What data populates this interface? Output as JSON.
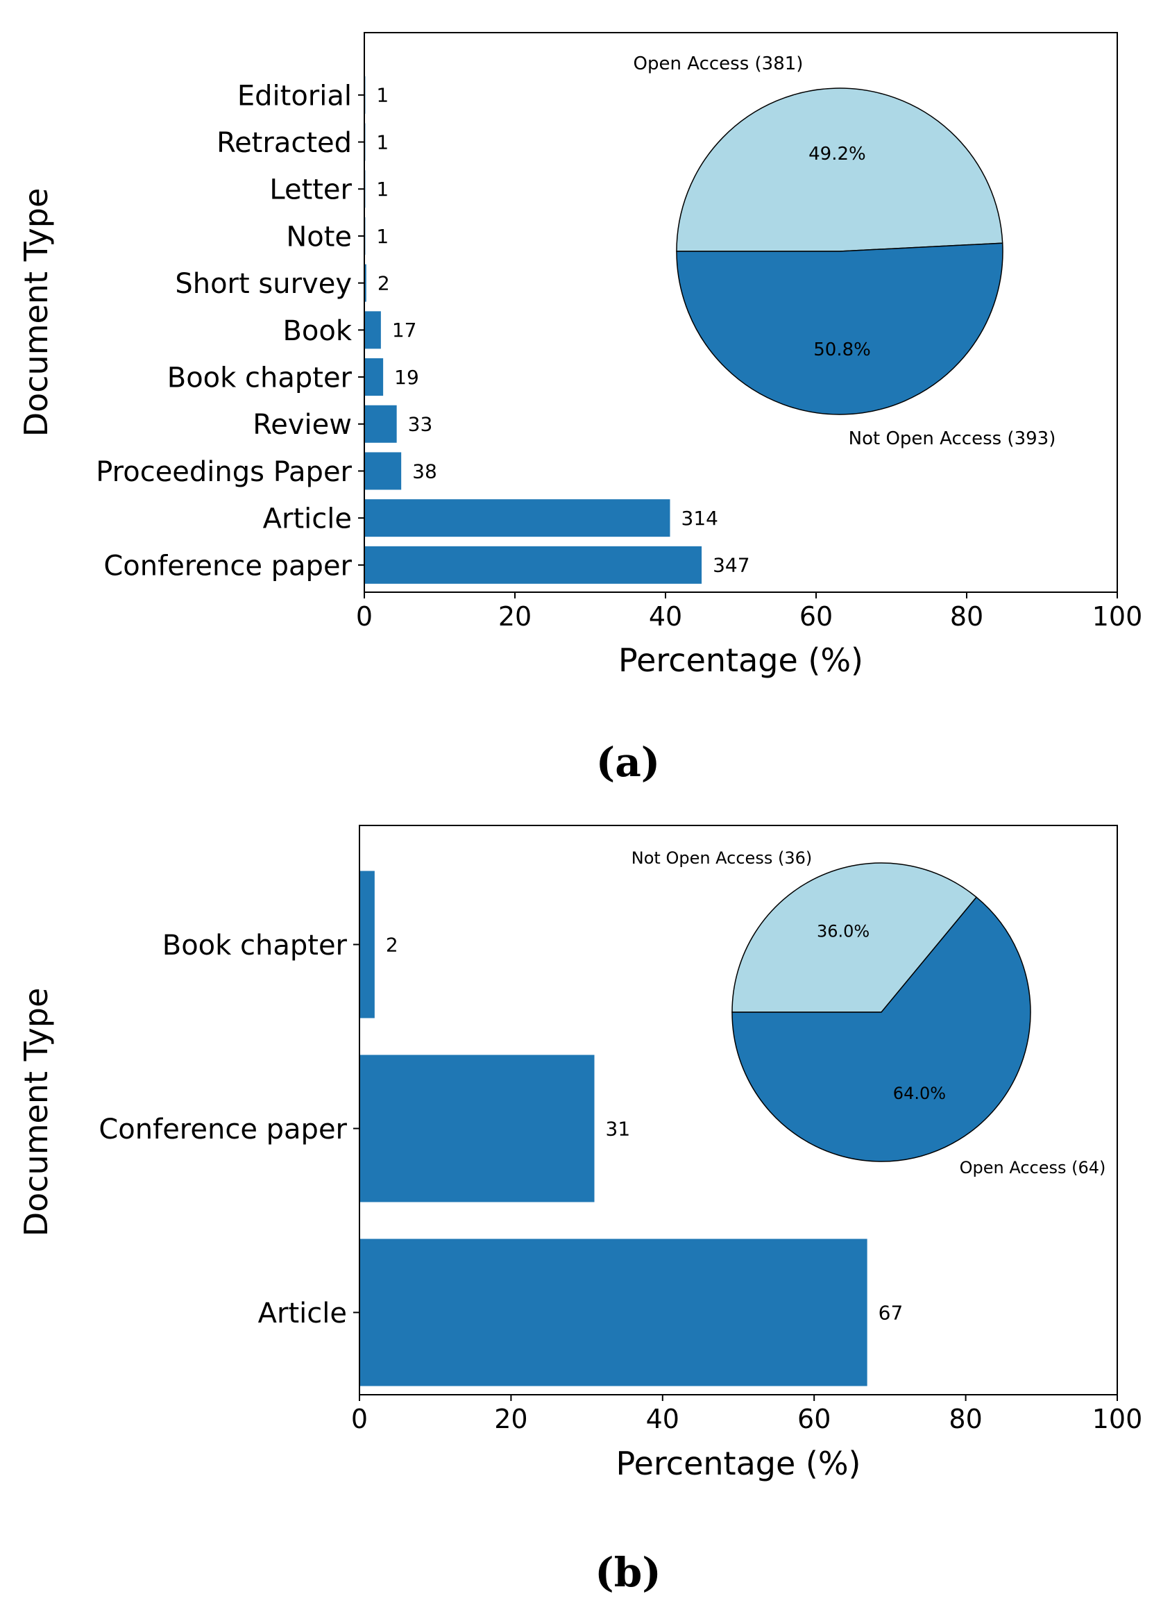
{
  "colors": {
    "bar": "#1f77b4",
    "pie_dark": "#1f77b4",
    "pie_light": "#add8e6",
    "axis": "#000000",
    "background": "#ffffff"
  },
  "panels": [
    {
      "label": "(a)"
    },
    {
      "label": "(b)"
    }
  ],
  "chart_data": [
    {
      "type": "bar",
      "orientation": "horizontal",
      "panel": "(a)",
      "categories": [
        "Conference paper",
        "Article",
        "Proceedings Paper",
        "Review",
        "Book chapter",
        "Book",
        "Short survey",
        "Note",
        "Letter",
        "Retracted",
        "Editorial"
      ],
      "values": [
        44.8,
        40.6,
        4.9,
        4.3,
        2.5,
        2.2,
        0.26,
        0.13,
        0.13,
        0.13,
        0.13
      ],
      "data_labels": [
        "347",
        "314",
        "38",
        "33",
        "19",
        "17",
        "2",
        "1",
        "1",
        "1",
        "1"
      ],
      "xlabel": "Percentage (%)",
      "ylabel": "Document Type",
      "xlim": [
        0,
        100
      ],
      "xticks": [
        "0",
        "20",
        "40",
        "60",
        "80",
        "100"
      ],
      "grid": false,
      "inset_pie": {
        "type": "pie",
        "slices": [
          {
            "label": "Open Access (381)",
            "value": 49.2,
            "pct_label": "49.2%",
            "color": "#add8e6"
          },
          {
            "label": "Not Open Access (393)",
            "value": 50.8,
            "pct_label": "50.8%",
            "color": "#1f77b4"
          }
        ],
        "start_angle_deg": 180,
        "direction": "clockwise",
        "placement": "top-right"
      }
    },
    {
      "type": "bar",
      "orientation": "horizontal",
      "panel": "(b)",
      "categories": [
        "Article",
        "Conference paper",
        "Book chapter"
      ],
      "values": [
        67,
        31,
        2
      ],
      "data_labels": [
        "67",
        "31",
        "2"
      ],
      "xlabel": "Percentage (%)",
      "ylabel": "Document Type",
      "xlim": [
        0,
        100
      ],
      "xticks": [
        "0",
        "20",
        "40",
        "60",
        "80",
        "100"
      ],
      "grid": false,
      "inset_pie": {
        "type": "pie",
        "slices": [
          {
            "label": "Not Open Access (36)",
            "value": 36.0,
            "pct_label": "36.0%",
            "color": "#add8e6"
          },
          {
            "label": "Open Access (64)",
            "value": 64.0,
            "pct_label": "64.0%",
            "color": "#1f77b4"
          }
        ],
        "start_angle_deg": 180,
        "direction": "clockwise",
        "placement": "top-right"
      }
    }
  ]
}
